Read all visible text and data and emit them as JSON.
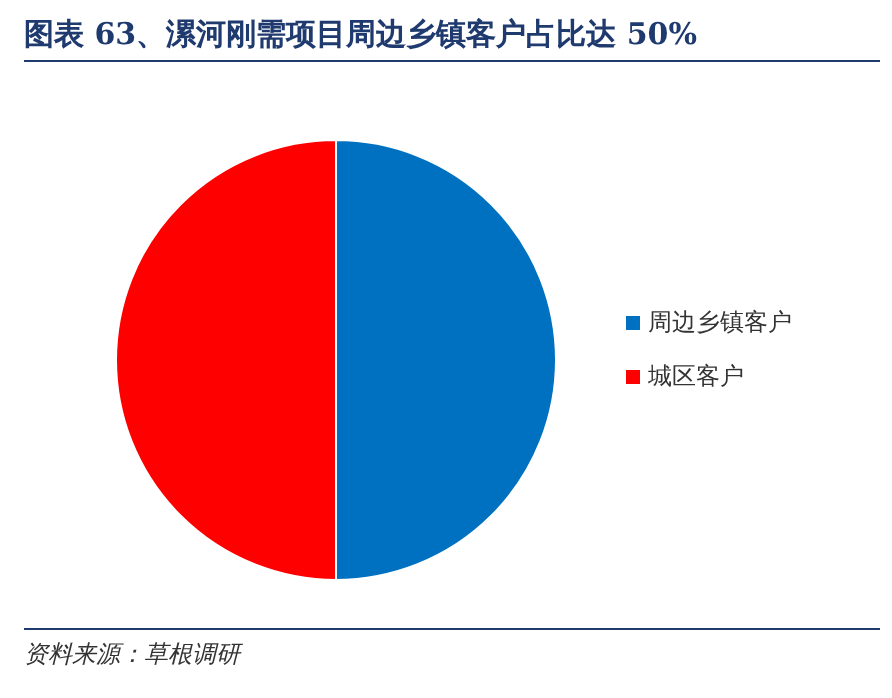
{
  "chart_data": {
    "type": "pie",
    "title": "图表 63、漯河刚需项目周边乡镇客户占比达 50%",
    "categories": [
      "周边乡镇客户",
      "城区客户"
    ],
    "values": [
      50,
      50
    ],
    "colors": [
      "#0070c0",
      "#ff0000"
    ],
    "legend": "right",
    "annotations": [
      "资料来源：草根调研"
    ]
  }
}
